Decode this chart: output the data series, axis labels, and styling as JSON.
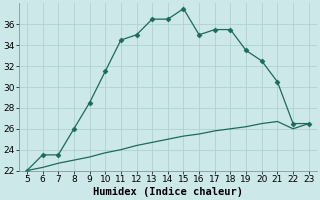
{
  "xlabel": "Humidex (Indice chaleur)",
  "x": [
    5,
    6,
    7,
    8,
    9,
    10,
    11,
    12,
    13,
    14,
    15,
    16,
    17,
    18,
    19,
    20,
    21,
    22,
    23
  ],
  "y_upper": [
    22,
    23.5,
    23.5,
    26,
    28.5,
    31.5,
    34.5,
    35,
    36.5,
    36.5,
    37.5,
    35,
    35.5,
    35.5,
    33.5,
    32.5,
    30.5,
    26.5,
    26.5
  ],
  "y_lower": [
    22,
    22.3,
    22.7,
    23.0,
    23.3,
    23.7,
    24.0,
    24.4,
    24.7,
    25.0,
    25.3,
    25.5,
    25.8,
    26.0,
    26.2,
    26.5,
    26.7,
    26.0,
    26.5
  ],
  "line_color": "#1a6b5a",
  "bg_color": "#cce8e8",
  "grid_color": "#aacece",
  "ylim": [
    22,
    38
  ],
  "yticks": [
    22,
    24,
    26,
    28,
    30,
    32,
    34,
    36
  ],
  "xlim": [
    4.5,
    23.5
  ],
  "xticks": [
    5,
    6,
    7,
    8,
    9,
    10,
    11,
    12,
    13,
    14,
    15,
    16,
    17,
    18,
    19,
    20,
    21,
    22,
    23
  ],
  "tick_fontsize": 6.5,
  "label_fontsize": 7.5,
  "markersize": 2.5,
  "linewidth": 0.9
}
